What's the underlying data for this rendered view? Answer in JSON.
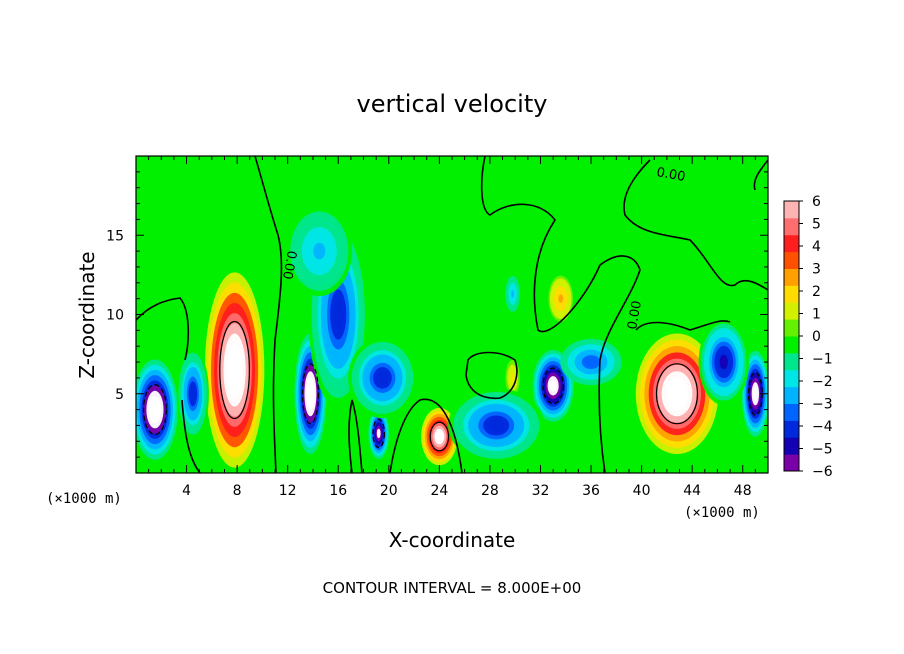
{
  "chart_data": {
    "type": "heatmap",
    "title": "vertical velocity",
    "xlabel": "X-coordinate",
    "ylabel": "Z-coordinate",
    "x_unit_left": "(×1000 m)",
    "x_unit_right": "(×1000 m)",
    "xlim": [
      0,
      50
    ],
    "ylim": [
      0,
      20
    ],
    "x_ticks": [
      4,
      8,
      12,
      16,
      20,
      24,
      28,
      32,
      36,
      40,
      44,
      48
    ],
    "y_ticks": [
      5,
      10,
      15
    ],
    "colorbar": {
      "ticks": [
        6,
        5,
        4,
        3,
        2,
        1,
        0,
        -1,
        -2,
        -3,
        -4,
        -5,
        -6
      ],
      "tick_labels": [
        "6",
        "5",
        "4",
        "3",
        "2",
        "1",
        "0",
        "−1",
        "−2",
        "−3",
        "−4",
        "−5",
        "−6"
      ],
      "range": [
        -6,
        6
      ],
      "colors": [
        "#7a00a8",
        "#1400b4",
        "#0028dc",
        "#0064ff",
        "#00b4ff",
        "#00e6e6",
        "#00e68c",
        "#00f000",
        "#64f000",
        "#d2f000",
        "#ffdc00",
        "#ffa000",
        "#ff5000",
        "#ff1e1e",
        "#ff6e6e",
        "#ffb4b4"
      ]
    },
    "contour_labels": [
      "0.00",
      "0.00",
      "0.00"
    ],
    "annotation": "CONTOUR INTERVAL = 8.000E+00",
    "features": [
      {
        "x": 7.8,
        "z": 6.5,
        "value": 9.0,
        "shape": "updraft-core"
      },
      {
        "x": 42.8,
        "z": 5.0,
        "value": 8.5,
        "shape": "updraft-core"
      },
      {
        "x": 24.0,
        "z": 2.3,
        "value": 7.0,
        "shape": "updraft-core"
      },
      {
        "x": 33.6,
        "z": 11.0,
        "value": 2.5,
        "shape": "weak-updraft"
      },
      {
        "x": 29.8,
        "z": 6.0,
        "value": 1.5,
        "shape": "weak-updraft"
      },
      {
        "x": 1.5,
        "z": 4.0,
        "value": -8.0,
        "shape": "downdraft-core"
      },
      {
        "x": 13.8,
        "z": 5.0,
        "value": -8.0,
        "shape": "downdraft-core"
      },
      {
        "x": 33.0,
        "z": 5.5,
        "value": -7.0,
        "shape": "downdraft-core"
      },
      {
        "x": 49.0,
        "z": 5.0,
        "value": -7.0,
        "shape": "downdraft-core"
      },
      {
        "x": 19.2,
        "z": 2.5,
        "value": -6.5,
        "shape": "downdraft-core"
      },
      {
        "x": 16.0,
        "z": 10.0,
        "value": -4.5,
        "shape": "downdraft"
      },
      {
        "x": 14.5,
        "z": 14.0,
        "value": -2.5,
        "shape": "downdraft"
      },
      {
        "x": 19.5,
        "z": 6.0,
        "value": -4.5,
        "shape": "downdraft"
      },
      {
        "x": 28.5,
        "z": 3.0,
        "value": -4.5,
        "shape": "downdraft"
      },
      {
        "x": 36.0,
        "z": 7.0,
        "value": -3.5,
        "shape": "downdraft"
      },
      {
        "x": 46.5,
        "z": 7.0,
        "value": -5.0,
        "shape": "downdraft"
      },
      {
        "x": 4.5,
        "z": 5.0,
        "value": -4.5,
        "shape": "downdraft"
      },
      {
        "x": 29.8,
        "z": 11.3,
        "value": -2.5,
        "shape": "downdraft"
      }
    ]
  }
}
